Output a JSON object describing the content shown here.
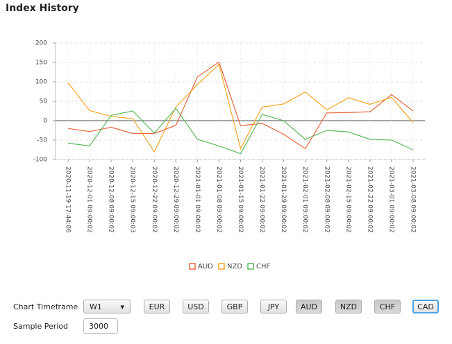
{
  "header": {
    "title": "Index History"
  },
  "chart_data": {
    "type": "line",
    "categories": [
      "2020-11-19 17:44:06",
      "2020-12-01 09:00:02",
      "2020-12-08 09:00:02",
      "2020-12-15 09:00:03",
      "2020-12-22 09:00:02",
      "2020-12-29 09:00:02",
      "2021-01-01 09:00:02",
      "2021-01-08 09:00:02",
      "2021-01-15 09:00:02",
      "2021-01-22 09:00:02",
      "2021-01-29 09:00:02",
      "2021-02-01 09:00:02",
      "2021-02-08 09:00:02",
      "2021-02-15 09:00:02",
      "2021-02-22 09:00:02",
      "2021-03-01 09:00:02",
      "2021-03-08 09:00:02"
    ],
    "series": [
      {
        "name": "AUD",
        "color": "#e8663d",
        "values": [
          -20,
          -28,
          -17,
          -33,
          -33,
          -12,
          113,
          151,
          -13,
          -7,
          -35,
          -72,
          20,
          21,
          23,
          67,
          25
        ]
      },
      {
        "name": "NZD",
        "color": "#f5a623",
        "values": [
          98,
          26,
          11,
          5,
          -80,
          35,
          93,
          145,
          -72,
          35,
          43,
          74,
          28,
          59,
          42,
          60,
          -5
        ]
      },
      {
        "name": "CHF",
        "color": "#5cb85c",
        "values": [
          -58,
          -65,
          14,
          25,
          -32,
          32,
          -48,
          -65,
          -85,
          16,
          0,
          -48,
          -25,
          -29,
          -48,
          -50,
          -75
        ]
      }
    ],
    "ylim": [
      -100,
      200
    ],
    "yticks": [
      -100,
      -50,
      0,
      50,
      100,
      150,
      200
    ],
    "grid": true
  },
  "controls": {
    "timeframe_label": "Chart Timeframe",
    "timeframe": "W1",
    "currencies": [
      "EUR",
      "USD",
      "GBP",
      "JPY",
      "AUD",
      "NZD",
      "CHF",
      "CAD"
    ],
    "pressed": [
      false,
      false,
      false,
      false,
      true,
      true,
      true,
      false
    ],
    "sample_period_label": "Sample Period",
    "sample_period": "3000"
  }
}
